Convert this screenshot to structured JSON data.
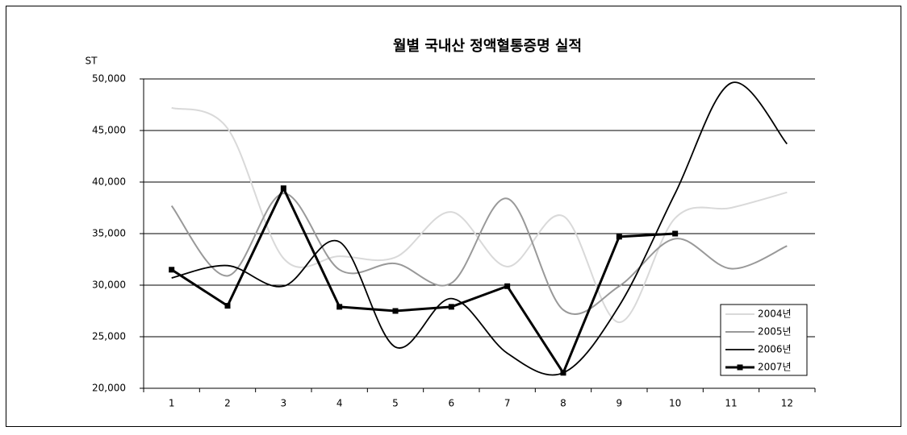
{
  "chart_data": {
    "type": "line",
    "title": "월별 국내산 정액혈통증명 실적",
    "y_label": "ST",
    "categories": [
      "1",
      "2",
      "3",
      "4",
      "5",
      "6",
      "7",
      "8",
      "9",
      "10",
      "11",
      "12"
    ],
    "ylim": [
      20000,
      50000
    ],
    "yticks": [
      {
        "value": 20000,
        "label": "20,000"
      },
      {
        "value": 25000,
        "label": "25,000"
      },
      {
        "value": 30000,
        "label": "30,000"
      },
      {
        "value": 35000,
        "label": "35,000"
      },
      {
        "value": 40000,
        "label": "40,000"
      },
      {
        "value": 45000,
        "label": "45,000"
      },
      {
        "value": 50000,
        "label": "50,000"
      }
    ],
    "grid": true,
    "legend": "lower right",
    "series": [
      {
        "name": "2004년",
        "color": "#d9d9d9",
        "width": 2,
        "smooth": true,
        "marker": false,
        "values": [
          47200,
          45200,
          32600,
          32800,
          32700,
          37100,
          31800,
          36700,
          26400,
          36500,
          37500,
          39000
        ]
      },
      {
        "name": "2005년",
        "color": "#999999",
        "width": 2,
        "smooth": true,
        "marker": false,
        "values": [
          37700,
          30900,
          38900,
          31500,
          32100,
          30200,
          38400,
          27600,
          29900,
          34500,
          31600,
          33800
        ]
      },
      {
        "name": "2006년",
        "color": "#000000",
        "width": 1.8,
        "smooth": true,
        "marker": false,
        "values": [
          30700,
          31900,
          29900,
          34200,
          24000,
          28700,
          23400,
          21500,
          28000,
          38900,
          49600,
          43700
        ]
      },
      {
        "name": "2007년",
        "color": "#000000",
        "width": 3,
        "smooth": false,
        "marker": true,
        "values": [
          31500,
          28000,
          39400,
          27900,
          27500,
          27900,
          29900,
          21500,
          34700,
          35000,
          null,
          null
        ]
      }
    ]
  }
}
